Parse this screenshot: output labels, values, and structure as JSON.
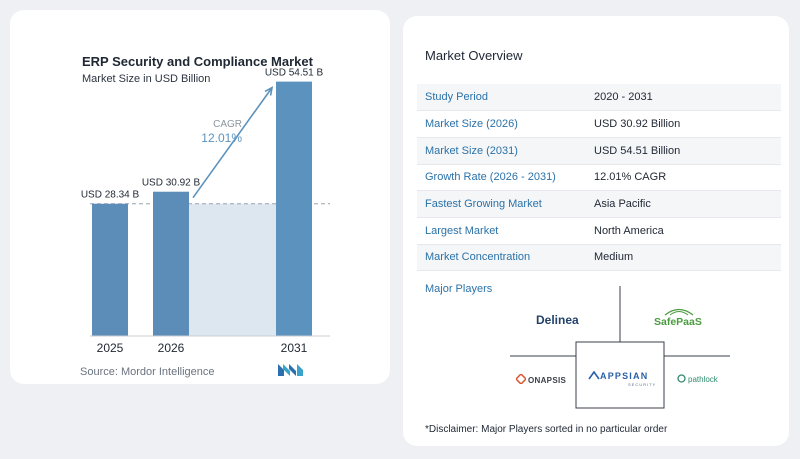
{
  "chart_data": {
    "type": "bar",
    "title": "ERP Security and Compliance Market",
    "subtitle": "Market Size in USD Billion",
    "categories": [
      "2025",
      "2026",
      "2031"
    ],
    "values": [
      28.34,
      30.92,
      54.51
    ],
    "value_labels": [
      "USD 28.34 B",
      "USD 30.92 B",
      "USD 54.51 B"
    ],
    "cagr_label": "CAGR",
    "cagr_value": "12.01%",
    "ylim": [
      0,
      60
    ],
    "colors": {
      "bar": "#5b8db8",
      "bar_last": "#5b93be",
      "fill": "#dde7f0",
      "arrow": "#5b93be",
      "dash": "#9aa3ad"
    },
    "source": "Source: Mordor Intelligence"
  },
  "overview": {
    "title": "Market Overview",
    "rows": [
      {
        "key": "Study Period",
        "value": "2020 - 2031"
      },
      {
        "key": "Market Size (2026)",
        "value": "USD 30.92 Billion"
      },
      {
        "key": "Market Size (2031)",
        "value": "USD 54.51 Billion"
      },
      {
        "key": "Growth Rate (2026 - 2031)",
        "value": "12.01% CAGR"
      },
      {
        "key": "Fastest Growing Market",
        "value": "Asia Pacific"
      },
      {
        "key": "Largest Market",
        "value": "North America"
      },
      {
        "key": "Market Concentration",
        "value": "Medium"
      }
    ]
  },
  "players": {
    "title": "Major Players",
    "logos": [
      "Delinea",
      "SafePaaS",
      "ONAPSIS",
      "APPSIAN",
      "SECURITY",
      "pathlock"
    ]
  },
  "disclaimer": "*Disclaimer: Major Players sorted in no particular order"
}
